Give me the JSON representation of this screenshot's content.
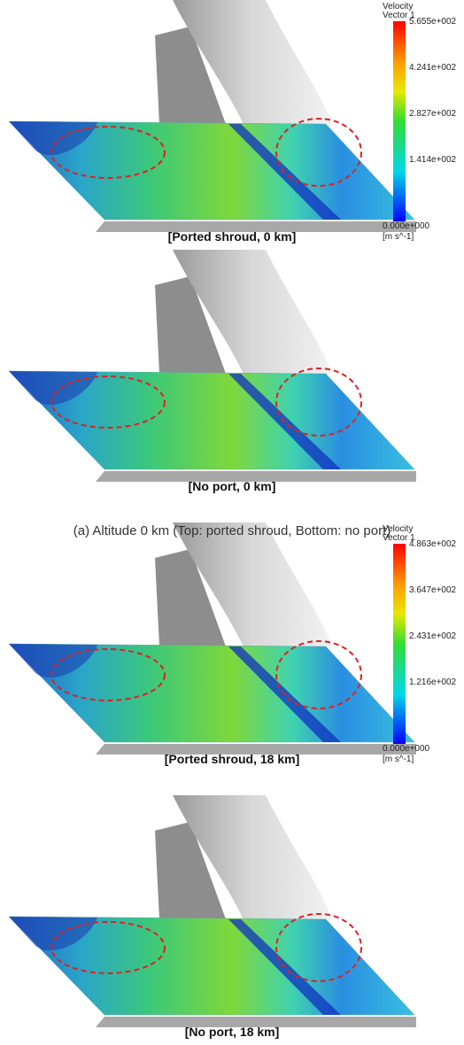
{
  "panels": [
    {
      "label": "[Ported shroud, 0 km]",
      "legend": {
        "title": "Velocity",
        "subtitle": "Vector 1",
        "ticks": [
          "5.655e+002",
          "4.241e+002",
          "2.827e+002",
          "1.414e+002",
          "0.000e+000"
        ],
        "unit": "[m s^-1]"
      }
    },
    {
      "label": "[No port, 0 km]"
    },
    {
      "label": "[Ported shroud, 18 km]",
      "legend": {
        "title": "Velocity",
        "subtitle": "Vector 1",
        "ticks": [
          "4.863e+002",
          "3.647e+002",
          "2.431e+002",
          "1.216e+002",
          "0.000e+000"
        ],
        "unit": "[m s^-1]"
      }
    },
    {
      "label": "[No port, 18 km]"
    }
  ],
  "caption": "(a) Altitude 0 km (Top: ported shroud, Bottom: no port)"
}
